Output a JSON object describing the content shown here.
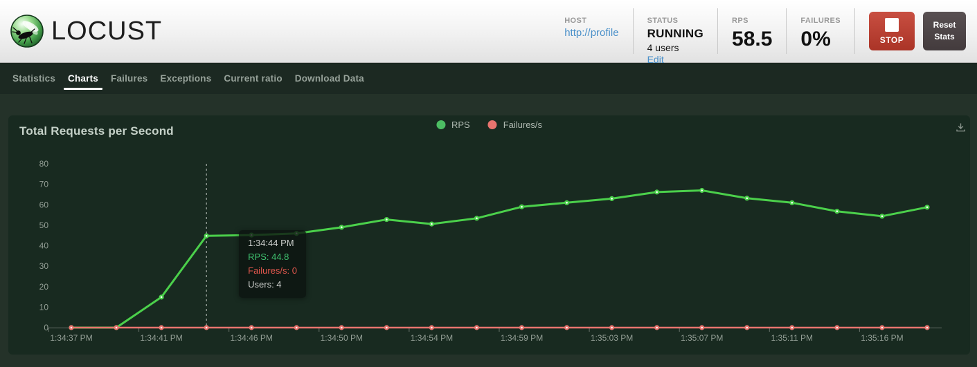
{
  "header": {
    "logo_text": "LOCUST",
    "host": {
      "label": "HOST",
      "value": "http://profile"
    },
    "status": {
      "label": "STATUS",
      "value": "RUNNING",
      "users": "4 users",
      "edit": "Edit"
    },
    "rps": {
      "label": "RPS",
      "value": "58.5"
    },
    "failures": {
      "label": "FAILURES",
      "value": "0%"
    },
    "stop_button": "STOP",
    "reset_button": "Reset Stats"
  },
  "nav": {
    "tabs": [
      {
        "label": "Statistics",
        "active": false
      },
      {
        "label": "Charts",
        "active": true
      },
      {
        "label": "Failures",
        "active": false
      },
      {
        "label": "Exceptions",
        "active": false
      },
      {
        "label": "Current ratio",
        "active": false
      },
      {
        "label": "Download Data",
        "active": false
      }
    ]
  },
  "chart": {
    "title": "Total Requests per Second",
    "legend": {
      "rps": "RPS",
      "failures": "Failures/s"
    },
    "tooltip": {
      "time": "1:34:44 PM",
      "rps": "RPS: 44.8",
      "failures": "Failures/s: 0",
      "users": "Users: 4"
    }
  },
  "icons": {
    "logo": "locust-insect",
    "stop": "white-square",
    "chart_corner": "download-arrow"
  },
  "colors": {
    "stop_button_red": "#c23b2c",
    "reset_button_gray": "#4c4345",
    "link_blue": "#4a90c9",
    "rps_green": "#4bd04b",
    "failures_red": "#e8746e",
    "legend_green_dot": "#4cbe63",
    "tooltip_green_text": "#3fc16f",
    "tooltip_red_text": "#e2574d"
  },
  "chart_data": {
    "type": "line",
    "title": "Total Requests per Second",
    "legend": [
      "RPS",
      "Failures/s"
    ],
    "legend_position": "top-center",
    "grid": false,
    "num_points": 20,
    "x_points_per_tick": 2,
    "x_tick_labels": [
      "1:34:37 PM",
      "1:34:41 PM",
      "1:34:46 PM",
      "1:34:50 PM",
      "1:34:54 PM",
      "1:34:59 PM",
      "1:35:03 PM",
      "1:35:07 PM",
      "1:35:11 PM",
      "1:35:16 PM"
    ],
    "y_ticks": [
      0,
      10,
      20,
      30,
      40,
      50,
      60,
      70,
      80
    ],
    "ylim": [
      0,
      80
    ],
    "series": [
      {
        "name": "RPS",
        "color": "#4bd04b",
        "values": [
          0,
          0,
          14.9,
          44.8,
          45.2,
          46.0,
          49.0,
          52.8,
          50.6,
          53.4,
          59.0,
          61.0,
          63.0,
          66.2,
          67.0,
          63.2,
          61.0,
          56.8,
          54.4,
          58.8
        ]
      },
      {
        "name": "Failures/s",
        "color": "#e8746e",
        "values": [
          0,
          0,
          0,
          0,
          0,
          0,
          0,
          0,
          0,
          0,
          0,
          0,
          0,
          0,
          0,
          0,
          0,
          0,
          0,
          0
        ]
      }
    ],
    "hover": {
      "point_index": 3,
      "time": "1:34:44 PM",
      "rps": 44.8,
      "failures_per_s": 0,
      "users": 4
    }
  }
}
